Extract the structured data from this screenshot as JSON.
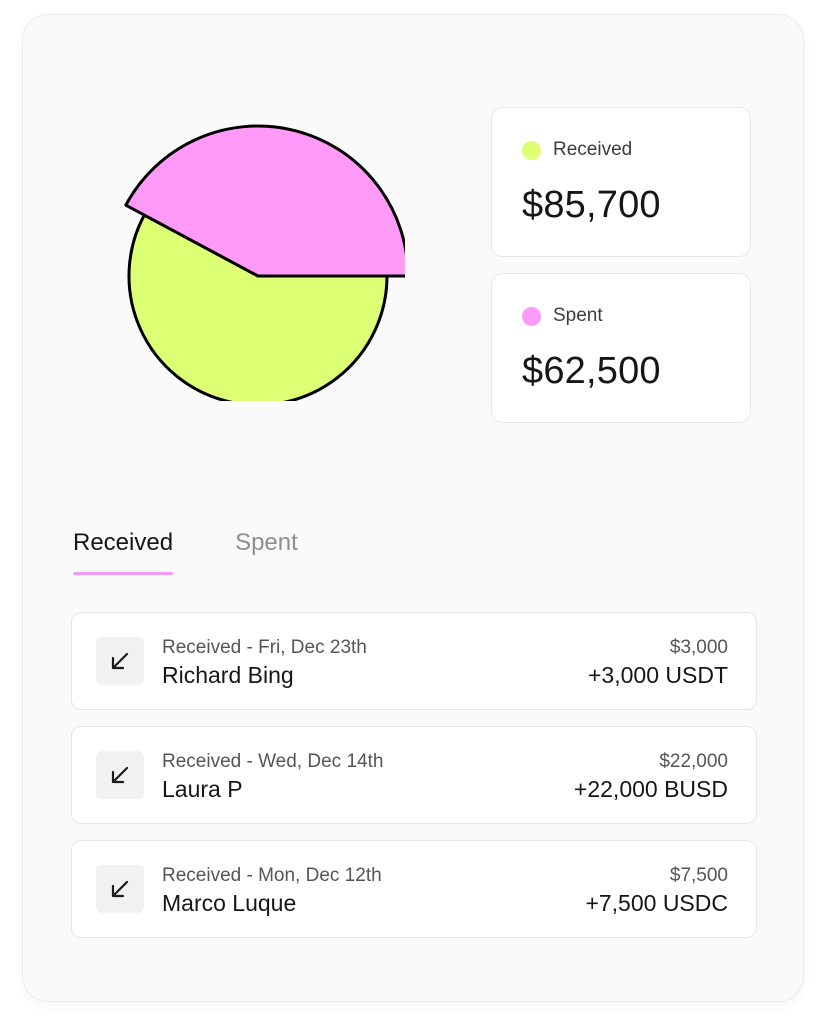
{
  "colors": {
    "received": "#dcff73",
    "spent": "#ff9af8",
    "outline": "#000000",
    "tab_underline": "#f398f5"
  },
  "summary": {
    "received": {
      "label": "Received",
      "amount": "$85,700"
    },
    "spent": {
      "label": "Spent",
      "amount": "$62,500"
    }
  },
  "tabs": [
    {
      "label": "Received",
      "active": true
    },
    {
      "label": "Spent",
      "active": false
    }
  ],
  "transactions": [
    {
      "icon": "arrow-down-left-icon",
      "meta": "Received - Fri, Dec 23th",
      "name": "Richard Bing",
      "usd": "$3,000",
      "token": "+3,000 USDT"
    },
    {
      "icon": "arrow-down-left-icon",
      "meta": "Received - Wed, Dec 14th",
      "name": "Laura P",
      "usd": "$22,000",
      "token": "+22,000 BUSD"
    },
    {
      "icon": "arrow-down-left-icon",
      "meta": "Received - Mon, Dec 12th",
      "name": "Marco Luque",
      "usd": "$7,500",
      "token": "+7,500 USDC"
    }
  ],
  "chart_data": {
    "type": "pie",
    "categories": [
      "Received",
      "Spent"
    ],
    "values": [
      85700,
      62500
    ],
    "exploded": "Spent"
  }
}
